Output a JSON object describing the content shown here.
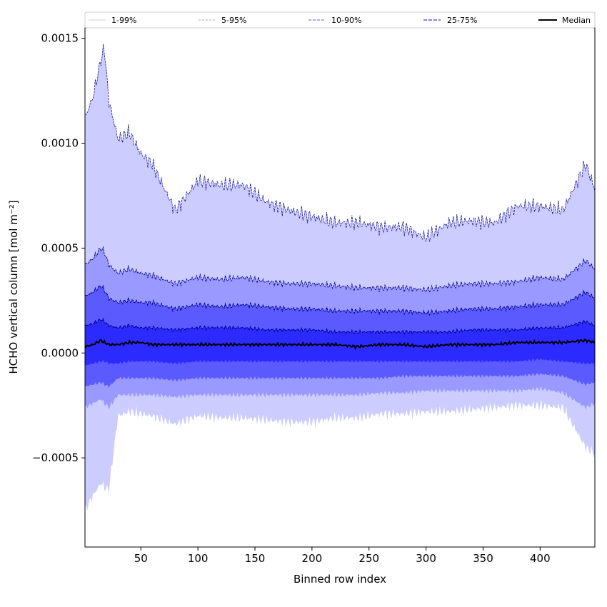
{
  "chart_data": {
    "type": "area",
    "title": "",
    "xlabel": "Binned row index",
    "ylabel": "HCHO vertical column [mol m⁻²]",
    "xlim": [
      1,
      448
    ],
    "ylim": [
      -0.000925,
      0.00155
    ],
    "xticks": [
      50,
      100,
      150,
      200,
      250,
      300,
      350,
      400
    ],
    "xtick_labels": [
      "50",
      "100",
      "150",
      "200",
      "250",
      "300",
      "350",
      "400"
    ],
    "yticks": [
      -0.0005,
      0.0,
      0.0005,
      0.001,
      0.0015
    ],
    "ytick_labels": [
      "−0.0005",
      "0.0000",
      "0.0005",
      "0.0010",
      "0.0015"
    ],
    "legend": {
      "placement": "top",
      "entries": [
        "1-99%",
        "5-95%",
        "10-90%",
        "25-75%",
        "Median"
      ]
    },
    "colors": {
      "band_1_99": "#ccccff",
      "band_5_95": "#9999ff",
      "band_10_90": "#5a5aff",
      "band_25_75": "#2b2bff",
      "percentile_line": "#00008b",
      "median": "#000000"
    },
    "x": [
      1,
      8,
      15,
      18,
      22,
      30,
      40,
      50,
      60,
      80,
      100,
      120,
      140,
      160,
      180,
      200,
      220,
      240,
      260,
      280,
      300,
      320,
      340,
      360,
      380,
      400,
      420,
      440,
      448
    ],
    "series": [
      {
        "name": "p99",
        "values": [
          0.00112,
          0.00122,
          0.0014,
          0.00145,
          0.0012,
          0.00102,
          0.00105,
          0.00095,
          0.0009,
          0.00068,
          0.00082,
          0.0008,
          0.0008,
          0.00072,
          0.00068,
          0.00065,
          0.00062,
          0.00062,
          0.0006,
          0.0006,
          0.00055,
          0.00062,
          0.00063,
          0.00062,
          0.0007,
          0.0007,
          0.00068,
          0.0009,
          0.00078
        ]
      },
      {
        "name": "p95",
        "values": [
          0.00042,
          0.00045,
          0.0005,
          0.00048,
          0.00042,
          0.00038,
          0.0004,
          0.00038,
          0.00037,
          0.00033,
          0.00036,
          0.00035,
          0.00036,
          0.00034,
          0.00033,
          0.00033,
          0.00032,
          0.00031,
          0.00031,
          0.00031,
          0.0003,
          0.00032,
          0.00033,
          0.00033,
          0.00034,
          0.00036,
          0.00035,
          0.00044,
          0.0004
        ]
      },
      {
        "name": "p90",
        "values": [
          0.00027,
          0.00029,
          0.00032,
          0.0003,
          0.00026,
          0.00024,
          0.00025,
          0.00024,
          0.00024,
          0.00021,
          0.00023,
          0.00022,
          0.00023,
          0.00022,
          0.00021,
          0.00021,
          0.0002,
          0.0002,
          0.0002,
          0.0002,
          0.00019,
          0.0002,
          0.00021,
          0.00021,
          0.00022,
          0.00023,
          0.00023,
          0.00029,
          0.00026
        ]
      },
      {
        "name": "p75",
        "values": [
          0.00013,
          0.00014,
          0.00016,
          0.00015,
          0.00013,
          0.00012,
          0.00013,
          0.00012,
          0.00012,
          0.00011,
          0.00012,
          0.00012,
          0.00012,
          0.00011,
          0.00011,
          0.00011,
          0.0001,
          0.0001,
          0.0001,
          0.0001,
          0.0001,
          0.0001,
          0.00011,
          0.00011,
          0.00011,
          0.00012,
          0.00012,
          0.00015,
          0.00013
        ]
      },
      {
        "name": "Median",
        "values": [
          3e-05,
          4e-05,
          6e-05,
          5e-05,
          4e-05,
          4e-05,
          5e-05,
          5e-05,
          4e-05,
          4e-05,
          4e-05,
          4e-05,
          4e-05,
          4e-05,
          4e-05,
          4e-05,
          4e-05,
          3e-05,
          4e-05,
          4e-05,
          3e-05,
          4e-05,
          4e-05,
          4e-05,
          5e-05,
          5e-05,
          5e-05,
          6e-05,
          5e-05
        ]
      },
      {
        "name": "p25",
        "values": [
          -6e-05,
          -5e-05,
          -4e-05,
          -4e-05,
          -5e-05,
          -5e-05,
          -4e-05,
          -4e-05,
          -4e-05,
          -5e-05,
          -4e-05,
          -4e-05,
          -4e-05,
          -4e-05,
          -4e-05,
          -4e-05,
          -4e-05,
          -4e-05,
          -4e-05,
          -4e-05,
          -4e-05,
          -4e-05,
          -4e-05,
          -4e-05,
          -4e-05,
          -3e-05,
          -4e-05,
          -5e-05,
          -5e-05
        ]
      },
      {
        "name": "p10",
        "values": [
          -0.00016,
          -0.00015,
          -0.00014,
          -0.00015,
          -0.00016,
          -0.00012,
          -0.00012,
          -0.00012,
          -0.00012,
          -0.00013,
          -0.00012,
          -0.00012,
          -0.00012,
          -0.00012,
          -0.00012,
          -0.00012,
          -0.00012,
          -0.00012,
          -0.00012,
          -0.00011,
          -0.00011,
          -0.00011,
          -0.00011,
          -0.00011,
          -0.00011,
          -0.0001,
          -0.00011,
          -0.00015,
          -0.00014
        ]
      },
      {
        "name": "p5",
        "values": [
          -0.00026,
          -0.00024,
          -0.00022,
          -0.00024,
          -0.00026,
          -0.0002,
          -0.0002,
          -0.0002,
          -0.0002,
          -0.00021,
          -0.0002,
          -0.0002,
          -0.0002,
          -0.0002,
          -0.0002,
          -0.0002,
          -0.0002,
          -0.0002,
          -0.00019,
          -0.00019,
          -0.00018,
          -0.00018,
          -0.00018,
          -0.00018,
          -0.00018,
          -0.00017,
          -0.00019,
          -0.00026,
          -0.00024
        ]
      },
      {
        "name": "p1",
        "values": [
          -0.00075,
          -0.00068,
          -0.00062,
          -0.00064,
          -0.00065,
          -0.0003,
          -0.00028,
          -0.00029,
          -0.0003,
          -0.00034,
          -0.0003,
          -0.00031,
          -0.00031,
          -0.00032,
          -0.00033,
          -0.00033,
          -0.00031,
          -0.00031,
          -0.00029,
          -0.00029,
          -0.00028,
          -0.00028,
          -0.00027,
          -0.00026,
          -0.00025,
          -0.00025,
          -0.00026,
          -0.00045,
          -0.00048
        ]
      }
    ]
  }
}
